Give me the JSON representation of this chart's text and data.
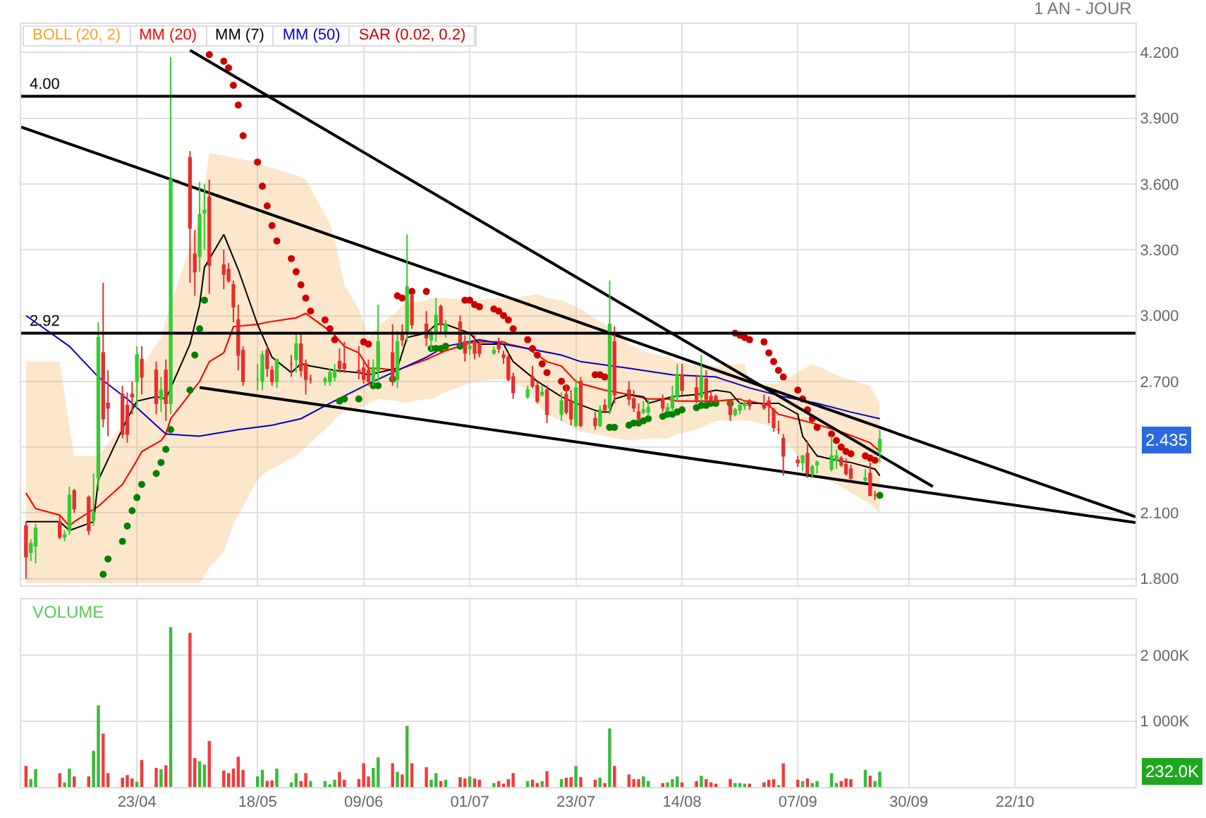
{
  "chart_data": [
    {
      "type": "candlestick",
      "x": [
        "--03-31",
        "--04-01",
        "--04-02",
        "--04-07",
        "--04-08",
        "--04-09",
        "--04-10",
        "--04-13",
        "--04-14",
        "--04-15",
        "--04-16",
        "--04-17",
        "--04-20",
        "--04-21",
        "--04-22",
        "--04-23",
        "--04-24",
        "--04-27",
        "--04-28",
        "--04-29",
        "--04-30",
        "--05-04",
        "--05-05",
        "--05-06",
        "--05-07",
        "--05-08",
        "--05-11",
        "--05-12",
        "--05-13",
        "--05-14",
        "--05-15",
        "--05-18",
        "--05-19",
        "--05-20",
        "--05-21",
        "--05-22",
        "--05-25",
        "--05-26",
        "--05-27",
        "--05-28",
        "--05-29",
        "--06-01",
        "--06-02",
        "--06-03",
        "--06-04",
        "--06-05",
        "--06-08",
        "--06-09",
        "--06-10",
        "--06-11",
        "--06-12",
        "--06-15",
        "--06-16",
        "--06-17",
        "--06-18",
        "--06-19",
        "--06-22",
        "--06-23",
        "--06-24",
        "--06-25",
        "--06-26",
        "--06-29",
        "--06-30",
        "--07-01",
        "--07-02",
        "--07-03",
        "--07-06",
        "--07-07",
        "--07-08",
        "--07-09",
        "--07-10",
        "--07-13",
        "--07-14",
        "--07-15",
        "--07-16",
        "--07-17",
        "--07-20",
        "--07-21",
        "--07-22",
        "--07-23",
        "--07-24",
        "--07-27",
        "--07-28",
        "--07-29",
        "--07-30",
        "--07-31",
        "--08-03",
        "--08-04",
        "--08-05",
        "--08-06",
        "--08-07",
        "--08-10",
        "--08-11",
        "--08-12",
        "--08-13",
        "--08-14",
        "--08-17",
        "--08-18",
        "--08-19",
        "--08-20",
        "--08-21",
        "--08-24",
        "--08-25",
        "--08-26",
        "--08-27",
        "--08-28",
        "--08-31",
        "--09-01",
        "--09-02",
        "--09-03",
        "--09-04",
        "--09-07",
        "--09-08",
        "--09-09",
        "--09-10",
        "--09-11",
        "--09-14",
        "--09-15",
        "--09-16",
        "--09-17",
        "--09-18",
        "--09-21",
        "--09-22",
        "--09-23",
        "--09-24"
      ],
      "ohlc": [
        [
          2.04,
          2.06,
          1.8,
          1.9
        ],
        [
          1.92,
          1.98,
          1.88,
          1.96
        ],
        [
          1.95,
          2.05,
          1.87,
          2.03
        ],
        [
          2.06,
          2.09,
          1.98,
          1.99
        ],
        [
          1.99,
          2.02,
          1.97,
          2.0
        ],
        [
          2.02,
          2.22,
          2.0,
          2.18
        ],
        [
          2.2,
          2.21,
          2.1,
          2.12
        ],
        [
          2.17,
          2.18,
          2.0,
          2.02
        ],
        [
          2.07,
          2.28,
          2.04,
          2.1
        ],
        [
          2.26,
          2.97,
          2.2,
          2.9
        ],
        [
          2.83,
          3.15,
          2.49,
          2.53
        ],
        [
          2.6,
          2.75,
          2.45,
          2.58
        ],
        [
          2.64,
          2.68,
          2.44,
          2.46
        ],
        [
          2.59,
          2.65,
          2.42,
          2.46
        ],
        [
          2.64,
          2.7,
          2.55,
          2.63
        ],
        [
          2.7,
          2.86,
          2.58,
          2.82
        ],
        [
          2.8,
          2.86,
          2.64,
          2.72
        ],
        [
          2.75,
          2.79,
          2.55,
          2.6
        ],
        [
          2.62,
          2.72,
          2.56,
          2.66
        ],
        [
          2.75,
          2.8,
          2.52,
          2.6
        ],
        [
          2.6,
          4.18,
          2.55,
          3.62
        ],
        [
          3.72,
          3.75,
          3.15,
          3.4
        ],
        [
          3.28,
          3.39,
          3.09,
          3.2
        ],
        [
          3.27,
          3.61,
          3.2,
          3.46
        ],
        [
          3.47,
          3.6,
          3.3,
          3.48
        ],
        [
          3.54,
          3.62,
          3.1,
          3.23
        ],
        [
          3.23,
          3.3,
          3.12,
          3.19
        ],
        [
          3.21,
          3.24,
          3.15,
          3.16
        ],
        [
          3.14,
          3.16,
          2.97,
          3.04
        ],
        [
          2.98,
          3.05,
          2.75,
          2.82
        ],
        [
          2.84,
          2.86,
          2.68,
          2.7
        ],
        [
          2.71,
          2.78,
          2.66,
          2.71
        ],
        [
          2.7,
          2.84,
          2.66,
          2.82
        ],
        [
          2.84,
          2.86,
          2.72,
          2.76
        ],
        [
          2.75,
          2.77,
          2.68,
          2.7
        ],
        [
          2.7,
          2.8,
          2.67,
          2.8
        ],
        [
          2.78,
          2.82,
          2.72,
          2.78
        ],
        [
          2.8,
          2.92,
          2.74,
          2.87
        ],
        [
          2.87,
          2.92,
          2.72,
          2.75
        ],
        [
          2.78,
          2.8,
          2.64,
          2.71
        ],
        [
          2.71,
          2.73,
          2.69,
          2.71
        ],
        [
          2.7,
          2.72,
          2.68,
          2.71
        ],
        [
          2.7,
          2.76,
          2.68,
          2.74
        ],
        [
          2.72,
          2.78,
          2.7,
          2.75
        ],
        [
          2.79,
          2.85,
          2.74,
          2.76
        ],
        [
          2.78,
          2.88,
          2.74,
          2.76
        ],
        [
          2.75,
          2.86,
          2.71,
          2.74
        ],
        [
          2.76,
          2.8,
          2.69,
          2.71
        ],
        [
          2.75,
          2.8,
          2.68,
          2.7
        ],
        [
          2.7,
          2.8,
          2.68,
          2.76
        ],
        [
          2.75,
          3.05,
          2.7,
          2.88
        ],
        [
          2.83,
          2.96,
          2.68,
          2.7
        ],
        [
          2.71,
          2.93,
          2.67,
          2.88
        ],
        [
          2.92,
          2.96,
          2.86,
          2.89
        ],
        [
          2.92,
          3.37,
          2.88,
          3.13
        ],
        [
          3.09,
          3.1,
          2.94,
          2.96
        ],
        [
          2.96,
          3.02,
          2.86,
          2.9
        ],
        [
          2.89,
          2.94,
          2.84,
          2.92
        ],
        [
          2.92,
          3.08,
          2.88,
          3.0
        ],
        [
          3.04,
          3.05,
          2.92,
          2.96
        ],
        [
          2.92,
          2.98,
          2.9,
          2.96
        ],
        [
          2.97,
          3.0,
          2.86,
          2.88
        ],
        [
          2.88,
          2.91,
          2.79,
          2.83
        ],
        [
          2.85,
          2.92,
          2.82,
          2.86
        ],
        [
          2.88,
          2.91,
          2.8,
          2.83
        ],
        [
          2.87,
          2.88,
          2.81,
          2.83
        ],
        [
          2.83,
          2.86,
          2.82,
          2.84
        ],
        [
          2.87,
          2.9,
          2.83,
          2.85
        ],
        [
          2.82,
          2.84,
          2.78,
          2.81
        ],
        [
          2.81,
          2.83,
          2.7,
          2.71
        ],
        [
          2.72,
          2.74,
          2.62,
          2.65
        ],
        [
          2.63,
          2.68,
          2.62,
          2.66
        ],
        [
          2.72,
          2.77,
          2.67,
          2.68
        ],
        [
          2.68,
          2.7,
          2.6,
          2.61
        ],
        [
          2.64,
          2.68,
          2.63,
          2.65
        ],
        [
          2.66,
          2.68,
          2.51,
          2.55
        ],
        [
          2.55,
          2.65,
          2.52,
          2.61
        ],
        [
          2.64,
          2.68,
          2.55,
          2.56
        ],
        [
          2.61,
          2.66,
          2.5,
          2.53
        ],
        [
          2.5,
          2.71,
          2.49,
          2.67
        ],
        [
          2.7,
          2.72,
          2.49,
          2.5
        ],
        [
          2.53,
          2.56,
          2.48,
          2.5
        ],
        [
          2.5,
          2.59,
          2.49,
          2.57
        ],
        [
          2.59,
          2.62,
          2.56,
          2.57
        ],
        [
          2.58,
          3.16,
          2.55,
          2.96
        ],
        [
          2.88,
          2.95,
          2.6,
          2.64
        ],
        [
          2.66,
          2.7,
          2.59,
          2.62
        ],
        [
          2.62,
          2.66,
          2.56,
          2.58
        ],
        [
          2.56,
          2.6,
          2.52,
          2.53
        ],
        [
          2.56,
          2.61,
          2.55,
          2.57
        ],
        [
          2.56,
          2.62,
          2.54,
          2.58
        ],
        [
          2.62,
          2.64,
          2.56,
          2.58
        ],
        [
          2.57,
          2.6,
          2.56,
          2.58
        ],
        [
          2.58,
          2.68,
          2.56,
          2.63
        ],
        [
          2.63,
          2.78,
          2.61,
          2.73
        ],
        [
          2.73,
          2.78,
          2.64,
          2.66
        ],
        [
          2.67,
          2.73,
          2.6,
          2.61
        ],
        [
          2.63,
          2.82,
          2.61,
          2.72
        ],
        [
          2.71,
          2.75,
          2.6,
          2.62
        ],
        [
          2.63,
          2.66,
          2.6,
          2.61
        ],
        [
          2.63,
          2.64,
          2.6,
          2.61
        ],
        [
          2.61,
          2.62,
          2.52,
          2.55
        ],
        [
          2.55,
          2.58,
          2.54,
          2.57
        ],
        [
          2.57,
          2.61,
          2.55,
          2.59
        ],
        [
          2.59,
          2.61,
          2.57,
          2.6
        ],
        [
          2.61,
          2.62,
          2.57,
          2.59
        ],
        [
          2.6,
          2.64,
          2.57,
          2.58
        ],
        [
          2.61,
          2.63,
          2.51,
          2.59
        ],
        [
          2.57,
          2.58,
          2.47,
          2.49
        ],
        [
          2.48,
          2.52,
          2.46,
          2.48
        ],
        [
          2.44,
          2.46,
          2.27,
          2.36
        ],
        [
          2.34,
          2.36,
          2.31,
          2.33
        ],
        [
          2.33,
          2.36,
          2.29,
          2.36
        ],
        [
          2.37,
          2.43,
          2.26,
          2.28
        ],
        [
          2.28,
          2.32,
          2.26,
          2.31
        ],
        [
          2.32,
          2.34,
          2.28,
          2.33
        ],
        [
          2.3,
          2.45,
          2.29,
          2.36
        ],
        [
          2.34,
          2.39,
          2.3,
          2.36
        ],
        [
          2.35,
          2.36,
          2.31,
          2.32
        ],
        [
          2.32,
          2.35,
          2.27,
          2.28
        ],
        [
          2.3,
          2.32,
          2.25,
          2.26
        ],
        [
          2.25,
          2.3,
          2.24,
          2.26
        ],
        [
          2.28,
          2.33,
          2.18,
          2.18
        ],
        [
          2.18,
          2.2,
          2.16,
          2.18
        ],
        [
          2.38,
          2.48,
          2.33,
          2.435
        ]
      ],
      "series": [
        {
          "name": "BOLL (20, 2)",
          "type": "line",
          "color": "#f7a035",
          "x": [
            "--03-31",
            "--04-02",
            "--04-07",
            "--04-09",
            "--04-10",
            "--04-15",
            "--04-20",
            "--04-23",
            "--04-24",
            "--04-28",
            "--04-29",
            "--04-30",
            "--05-06",
            "--05-08",
            "--05-11",
            "--05-13",
            "--05-18",
            "--05-20",
            "--05-26",
            "--05-28",
            "--06-02",
            "--06-03",
            "--06-05",
            "--06-08",
            "--06-10",
            "--06-12",
            "--06-16",
            "--06-17",
            "--06-22",
            "--06-23",
            "--06-26",
            "--07-02",
            "--07-08",
            "--07-09",
            "--07-13",
            "--07-15",
            "--07-17",
            "--07-20",
            "--07-23",
            "--07-24",
            "--07-29",
            "--08-03",
            "--08-07",
            "--08-11",
            "--08-13",
            "--08-17",
            "--08-19",
            "--08-21",
            "--08-26",
            "--08-27",
            "--08-28",
            "--09-01",
            "--09-03",
            "--09-10",
            "--09-16",
            "--09-22",
            "--09-24"
          ],
          "values": [
            2.19,
            2.12,
            2.09,
            2.04,
            2.06,
            2.13,
            2.23,
            2.34,
            2.38,
            2.43,
            2.46,
            2.53,
            2.7,
            2.79,
            2.83,
            2.95,
            2.96,
            2.97,
            2.99,
            3.01,
            2.93,
            2.91,
            2.86,
            2.83,
            2.76,
            2.76,
            null,
            2.76,
            2.8,
            2.81,
            2.84,
            2.88,
            2.88,
            2.87,
            2.85,
            2.82,
            2.79,
            2.77,
            2.7,
            2.69,
            2.66,
            2.64,
            2.62,
            2.62,
            2.61,
            2.61,
            2.61,
            2.61,
            2.62,
            2.61,
            2.61,
            2.59,
            2.55,
            2.51,
            2.47,
            2.42,
            2.38
          ],
          "upper": [
            2.79,
            2.79,
            2.79,
            2.5,
            2.36,
            2.36,
            2.5,
            2.7,
            2.77,
            2.9,
            2.98,
            3.05,
            3.45,
            3.74,
            3.73,
            3.72,
            3.7,
            3.68,
            3.64,
            3.62,
            3.42,
            3.35,
            3.14,
            3.03,
            2.9,
            2.95,
            3.02,
            3.05,
            3.07,
            3.08,
            3.08,
            3.07,
            3.08,
            3.08,
            3.09,
            3.1,
            3.08,
            3.07,
            3.04,
            3.03,
            2.96,
            2.87,
            2.83,
            2.81,
            2.79,
            2.77,
            2.77,
            2.77,
            2.78,
            2.78,
            2.69,
            2.69,
            2.69,
            2.78,
            2.72,
            2.68,
            2.6
          ],
          "lower": [
            1.78,
            1.78,
            1.78,
            1.78,
            1.78,
            1.78,
            1.78,
            1.78,
            1.78,
            1.78,
            1.78,
            1.78,
            1.78,
            1.85,
            1.92,
            2.05,
            2.25,
            2.29,
            2.36,
            2.4,
            2.5,
            2.53,
            2.56,
            2.58,
            2.6,
            2.62,
            2.61,
            2.6,
            2.62,
            2.62,
            2.65,
            2.7,
            2.71,
            2.71,
            2.66,
            2.6,
            2.55,
            2.52,
            2.48,
            2.47,
            2.45,
            2.43,
            2.44,
            2.44,
            2.46,
            2.48,
            2.5,
            2.52,
            2.52,
            2.52,
            2.52,
            2.5,
            2.47,
            2.28,
            2.22,
            2.14,
            2.1
          ]
        },
        {
          "name": "MM (20)",
          "type": "line",
          "color": "#ff0000",
          "x": [
            "--03-31",
            "--04-02",
            "--04-07",
            "--04-09",
            "--04-10",
            "--04-15",
            "--04-20",
            "--04-23",
            "--04-24",
            "--04-28",
            "--04-29",
            "--04-30",
            "--05-06",
            "--05-08",
            "--05-11",
            "--05-13",
            "--05-18",
            "--05-20",
            "--05-26",
            "--05-28",
            "--06-02",
            "--06-03",
            "--06-05",
            "--06-08",
            "--06-10",
            "--06-12",
            "--06-16",
            "--06-17",
            "--06-22",
            "--06-23",
            "--06-26",
            "--07-02",
            "--07-08",
            "--07-09",
            "--07-13",
            "--07-15",
            "--07-17",
            "--07-20",
            "--07-23",
            "--07-24",
            "--07-29",
            "--08-03",
            "--08-07",
            "--08-11",
            "--08-13",
            "--08-17",
            "--08-19",
            "--08-21",
            "--08-26",
            "--08-27",
            "--08-28",
            "--09-01",
            "--09-03",
            "--09-10",
            "--09-16",
            "--09-22",
            "--09-24"
          ],
          "values": [
            2.19,
            2.12,
            2.09,
            2.04,
            2.06,
            2.13,
            2.23,
            2.34,
            2.38,
            2.43,
            2.46,
            2.53,
            2.7,
            2.79,
            2.83,
            2.95,
            2.96,
            2.97,
            2.99,
            3.01,
            2.93,
            2.91,
            2.86,
            2.83,
            2.76,
            2.76,
            2.75,
            2.76,
            2.8,
            2.81,
            2.84,
            2.88,
            2.88,
            2.87,
            2.85,
            2.82,
            2.79,
            2.77,
            2.7,
            2.69,
            2.66,
            2.64,
            2.62,
            2.62,
            2.61,
            2.61,
            2.61,
            2.61,
            2.62,
            2.61,
            2.61,
            2.59,
            2.55,
            2.51,
            2.47,
            2.42,
            2.38
          ]
        },
        {
          "name": "MM (7)",
          "type": "line",
          "color": "#000000",
          "x": [
            "--03-31",
            "--04-07",
            "--04-09",
            "--04-14",
            "--04-15",
            "--04-21",
            "--04-23",
            "--04-27",
            "--04-29",
            "--05-04",
            "--05-06",
            "--05-07",
            "--05-11",
            "--05-14",
            "--05-18",
            "--05-21",
            "--05-25",
            "--05-27",
            "--05-29",
            "--06-03",
            "--06-08",
            "--06-10",
            "--06-16",
            "--06-18",
            "--06-22",
            "--06-24",
            "--06-26",
            "--07-01",
            "--07-03",
            "--07-08",
            "--07-10",
            "--07-15",
            "--07-20",
            "--07-23",
            "--07-28",
            "--07-30",
            "--07-31",
            "--08-03",
            "--08-06",
            "--08-07",
            "--08-12",
            "--08-17",
            "--08-21",
            "--08-24",
            "--08-26",
            "--08-31",
            "--09-03",
            "--09-07",
            "--09-08",
            "--09-11",
            "--09-15",
            "--09-18",
            "--09-23",
            "--09-24"
          ],
          "values": [
            2.06,
            2.06,
            2.02,
            2.06,
            2.25,
            2.53,
            2.61,
            2.63,
            2.62,
            2.87,
            3.05,
            3.22,
            3.37,
            3.21,
            2.96,
            2.81,
            2.74,
            2.78,
            2.77,
            2.75,
            2.74,
            2.73,
            2.76,
            2.9,
            2.92,
            2.96,
            2.96,
            2.92,
            2.87,
            2.87,
            2.79,
            2.7,
            2.63,
            2.6,
            2.56,
            2.56,
            2.62,
            2.64,
            2.63,
            2.6,
            2.63,
            2.64,
            2.66,
            2.65,
            2.6,
            2.6,
            2.6,
            2.55,
            2.45,
            2.36,
            2.34,
            2.33,
            2.3,
            2.27
          ]
        },
        {
          "name": "MM (50)",
          "type": "line",
          "color": "#0000cc",
          "x": [
            "--03-31",
            "--04-09",
            "--04-15",
            "--04-21",
            "--04-29",
            "--05-06",
            "--05-14",
            "--05-21",
            "--05-27",
            "--06-02",
            "--06-11",
            "--06-22",
            "--06-26",
            "--07-03",
            "--07-13",
            "--07-20",
            "--07-24",
            "--08-03",
            "--08-12",
            "--08-21",
            "--08-28",
            "--09-04",
            "--09-11",
            "--09-18",
            "--09-24"
          ],
          "values": [
            3.0,
            2.86,
            2.72,
            2.62,
            2.46,
            2.45,
            2.48,
            2.5,
            2.53,
            2.6,
            2.7,
            2.81,
            2.86,
            2.89,
            2.85,
            2.82,
            2.79,
            2.76,
            2.73,
            2.72,
            2.67,
            2.63,
            2.6,
            2.56,
            2.53
          ]
        },
        {
          "name": "SAR (0.02, 0.2)",
          "type": "scatter",
          "color": "#cc0000",
          "values": [
            null,
            null,
            null,
            null,
            null,
            null,
            null,
            null,
            null,
            null,
            1.82,
            1.89,
            1.97,
            2.04,
            2.11,
            2.17,
            2.23,
            2.28,
            2.33,
            2.39,
            2.48,
            2.66,
            2.82,
            2.94,
            3.07,
            4.19,
            4.16,
            4.13,
            4.05,
            3.96,
            3.82,
            3.7,
            3.59,
            3.5,
            3.41,
            3.34,
            3.26,
            3.2,
            3.14,
            3.08,
            3.02,
            2.98,
            2.94,
            2.89,
            2.61,
            2.62,
            2.62,
            2.88,
            2.87,
            2.68,
            2.68,
            2.71,
            3.09,
            3.08,
            null,
            3.11,
            3.11,
            2.85,
            2.85,
            2.85,
            2.86,
            2.86,
            3.07,
            3.07,
            3.05,
            3.04,
            3.03,
            3.02,
            3.0,
            2.98,
            2.94,
            2.89,
            2.85,
            2.82,
            2.78,
            2.74,
            2.7,
            2.67,
            null,
            null,
            null,
            2.73,
            2.73,
            2.72,
            2.49,
            2.49,
            2.5,
            2.51,
            2.51,
            2.52,
            2.53,
            2.54,
            2.55,
            2.55,
            2.56,
            2.57,
            2.58,
            2.59,
            2.59,
            2.6,
            2.6,
            2.6,
            2.92,
            2.91,
            2.9,
            2.89,
            2.88,
            2.83,
            2.79,
            2.75,
            2.72,
            2.66,
            2.62,
            2.57,
            2.53,
            2.49,
            2.46,
            2.43,
            2.4,
            2.38,
            2.37,
            2.36,
            2.35,
            2.34,
            2.18
          ],
          "colors": [
            null,
            null,
            null,
            null,
            null,
            null,
            null,
            null,
            null,
            null,
            "#008000",
            "#008000",
            "#008000",
            "#008000",
            "#008000",
            "#008000",
            "#008000",
            "#008000",
            "#008000",
            "#008000",
            "#008000",
            "#008000",
            "#008000",
            "#008000",
            "#008000",
            "#cc0000",
            "#cc0000",
            "#cc0000",
            "#cc0000",
            "#cc0000",
            "#cc0000",
            "#cc0000",
            "#cc0000",
            "#cc0000",
            "#cc0000",
            "#cc0000",
            "#cc0000",
            "#cc0000",
            "#cc0000",
            "#cc0000",
            "#cc0000",
            "#cc0000",
            "#cc0000",
            "#cc0000",
            "#008000",
            "#008000",
            "#008000",
            "#cc0000",
            "#cc0000",
            "#008000",
            "#008000",
            "#008000",
            "#cc0000",
            "#cc0000",
            null,
            "#cc0000",
            "#cc0000",
            "#008000",
            "#008000",
            "#008000",
            "#008000",
            "#008000",
            "#cc0000",
            "#cc0000",
            "#cc0000",
            "#cc0000",
            "#cc0000",
            "#cc0000",
            "#cc0000",
            "#cc0000",
            "#cc0000",
            "#cc0000",
            "#cc0000",
            "#cc0000",
            "#cc0000",
            "#cc0000",
            "#cc0000",
            "#cc0000",
            null,
            null,
            null,
            "#cc0000",
            "#cc0000",
            "#cc0000",
            "#008000",
            "#008000",
            "#008000",
            "#008000",
            "#008000",
            "#008000",
            "#008000",
            "#008000",
            "#008000",
            "#008000",
            "#008000",
            "#008000",
            "#008000",
            "#008000",
            "#008000",
            "#008000",
            "#008000",
            "#008000",
            "#cc0000",
            "#cc0000",
            "#cc0000",
            "#cc0000",
            "#cc0000",
            "#cc0000",
            "#cc0000",
            "#cc0000",
            "#cc0000",
            "#cc0000",
            "#cc0000",
            "#cc0000",
            "#cc0000",
            "#cc0000",
            "#cc0000",
            "#cc0000",
            "#cc0000",
            "#cc0000",
            "#cc0000",
            "#cc0000",
            "#cc0000",
            "#cc0000",
            "#008000"
          ]
        },
        {
          "type": "line",
          "color": "#000000",
          "x": [
            "--05-04",
            "--10-05"
          ],
          "values": [
            4.21,
            2.22
          ]
        },
        {
          "type": "line",
          "color": "#000000",
          "x": [
            "--03-30",
            "--11-16"
          ],
          "values": [
            3.86,
            2.082
          ]
        },
        {
          "type": "line",
          "color": "#000000",
          "x": [
            "--05-06",
            "--11-16"
          ],
          "values": [
            2.672,
            2.056
          ]
        }
      ],
      "xlim": [
        "--03-30",
        "--11-16"
      ],
      "xticks": [
        {
          "value": "--04-23",
          "label": "23/04"
        },
        {
          "value": "--05-18",
          "label": "18/05"
        },
        {
          "value": "--06-09",
          "label": "09/06"
        },
        {
          "value": "--07-01",
          "label": "01/07"
        },
        {
          "value": "--07-23",
          "label": "23/07"
        },
        {
          "value": "--08-14",
          "label": "14/08"
        },
        {
          "value": "--09-07",
          "label": "07/09"
        },
        {
          "value": "--09-30",
          "label": "30/09"
        },
        {
          "value": "--10-22",
          "label": "22/10"
        }
      ],
      "ylim": [
        1.77,
        4.33
      ],
      "yticks": [
        {
          "value": 1.8,
          "label": "1.800"
        },
        {
          "value": 2.1,
          "label": "2.100"
        },
        {
          "value": 2.4,
          "label": null
        },
        {
          "value": 2.7,
          "label": "2.700"
        },
        {
          "value": 3.0,
          "label": "3.000"
        },
        {
          "value": 3.3,
          "label": "3.300"
        },
        {
          "value": 3.6,
          "label": "3.600"
        },
        {
          "value": 3.9,
          "label": "3.900"
        },
        {
          "value": 4.2,
          "label": "4.200"
        }
      ],
      "ref_lines": [
        {
          "axis": "y",
          "value": 4.0,
          "label": "4.00",
          "color": "#000000"
        },
        {
          "axis": "y",
          "value": 2.92,
          "label": "2.92",
          "color": "#000000"
        }
      ],
      "annotations": [
        "1 AN - JOUR",
        "2.435"
      ],
      "legend": "top left",
      "grid": true,
      "tick_labels": "y"
    },
    {
      "type": "bar",
      "title": "VOLUME",
      "x": [
        "--03-31",
        "--04-01",
        "--04-02",
        "--04-07",
        "--04-08",
        "--04-09",
        "--04-10",
        "--04-13",
        "--04-14",
        "--04-15",
        "--04-16",
        "--04-17",
        "--04-20",
        "--04-21",
        "--04-22",
        "--04-23",
        "--04-24",
        "--04-27",
        "--04-28",
        "--04-29",
        "--04-30",
        "--05-04",
        "--05-05",
        "--05-06",
        "--05-07",
        "--05-08",
        "--05-11",
        "--05-12",
        "--05-13",
        "--05-14",
        "--05-15",
        "--05-18",
        "--05-19",
        "--05-20",
        "--05-21",
        "--05-22",
        "--05-25",
        "--05-26",
        "--05-27",
        "--05-28",
        "--05-29",
        "--06-01",
        "--06-02",
        "--06-03",
        "--06-04",
        "--06-05",
        "--06-08",
        "--06-09",
        "--06-10",
        "--06-11",
        "--06-12",
        "--06-15",
        "--06-16",
        "--06-17",
        "--06-18",
        "--06-19",
        "--06-22",
        "--06-23",
        "--06-24",
        "--06-25",
        "--06-26",
        "--06-29",
        "--06-30",
        "--07-01",
        "--07-02",
        "--07-03",
        "--07-06",
        "--07-07",
        "--07-08",
        "--07-09",
        "--07-10",
        "--07-13",
        "--07-14",
        "--07-15",
        "--07-16",
        "--07-17",
        "--07-20",
        "--07-21",
        "--07-22",
        "--07-23",
        "--07-24",
        "--07-27",
        "--07-28",
        "--07-29",
        "--07-30",
        "--07-31",
        "--08-03",
        "--08-04",
        "--08-05",
        "--08-06",
        "--08-07",
        "--08-10",
        "--08-11",
        "--08-12",
        "--08-13",
        "--08-14",
        "--08-17",
        "--08-18",
        "--08-19",
        "--08-20",
        "--08-21",
        "--08-24",
        "--08-25",
        "--08-26",
        "--08-27",
        "--08-28",
        "--08-31",
        "--09-01",
        "--09-02",
        "--09-03",
        "--09-04",
        "--09-07",
        "--09-08",
        "--09-09",
        "--09-10",
        "--09-11",
        "--09-14",
        "--09-15",
        "--09-16",
        "--09-17",
        "--09-18",
        "--09-21",
        "--09-22",
        "--09-23",
        "--09-24"
      ],
      "values": [
        320,
        120,
        270,
        210,
        70,
        280,
        160,
        160,
        550,
        1240,
        810,
        210,
        140,
        180,
        130,
        80,
        410,
        290,
        270,
        330,
        2430,
        2340,
        440,
        390,
        340,
        700,
        250,
        210,
        280,
        460,
        260,
        160,
        260,
        90,
        100,
        280,
        70,
        210,
        90,
        210,
        90,
        90,
        40,
        110,
        230,
        110,
        120,
        360,
        160,
        290,
        450,
        360,
        230,
        190,
        930,
        360,
        300,
        110,
        210,
        90,
        110,
        150,
        130,
        160,
        130,
        110,
        60,
        90,
        50,
        120,
        210,
        90,
        110,
        60,
        90,
        240,
        120,
        140,
        150,
        320,
        150,
        110,
        140,
        60,
        890,
        320,
        190,
        120,
        120,
        160,
        90,
        60,
        70,
        120,
        160,
        70,
        90,
        170,
        120,
        70,
        50,
        120,
        60,
        60,
        50,
        50,
        70,
        110,
        120,
        30,
        360,
        110,
        90,
        130,
        60,
        90,
        210,
        60,
        90,
        130,
        120,
        260,
        170,
        90,
        232
      ],
      "colors": [
        "#f03c3c",
        "#3cb83c",
        "#3cb83c",
        "#f03c3c",
        "#3cb83c",
        "#3cb83c",
        "#f03c3c",
        "#f03c3c",
        "#3cb83c",
        "#3cb83c",
        "#f03c3c",
        "#f03c3c",
        "#f03c3c",
        "#f03c3c",
        "#f03c3c",
        "#3cb83c",
        "#f03c3c",
        "#f03c3c",
        "#3cb83c",
        "#f03c3c",
        "#3cb83c",
        "#f03c3c",
        "#f03c3c",
        "#3cb83c",
        "#3cb83c",
        "#f03c3c",
        "#f03c3c",
        "#f03c3c",
        "#f03c3c",
        "#f03c3c",
        "#f03c3c",
        "#3cb83c",
        "#3cb83c",
        "#f03c3c",
        "#f03c3c",
        "#3cb83c",
        "#3cb83c",
        "#3cb83c",
        "#f03c3c",
        "#f03c3c",
        "#3cb83c",
        "#3cb83c",
        "#3cb83c",
        "#3cb83c",
        "#f03c3c",
        "#f03c3c",
        "#f03c3c",
        "#f03c3c",
        "#f03c3c",
        "#3cb83c",
        "#3cb83c",
        "#f03c3c",
        "#3cb83c",
        "#f03c3c",
        "#3cb83c",
        "#f03c3c",
        "#f03c3c",
        "#3cb83c",
        "#3cb83c",
        "#f03c3c",
        "#3cb83c",
        "#f03c3c",
        "#f03c3c",
        "#3cb83c",
        "#f03c3c",
        "#f03c3c",
        "#3cb83c",
        "#f03c3c",
        "#f03c3c",
        "#f03c3c",
        "#f03c3c",
        "#3cb83c",
        "#f03c3c",
        "#f03c3c",
        "#3cb83c",
        "#f03c3c",
        "#3cb83c",
        "#f03c3c",
        "#f03c3c",
        "#3cb83c",
        "#f03c3c",
        "#f03c3c",
        "#3cb83c",
        "#f03c3c",
        "#3cb83c",
        "#f03c3c",
        "#f03c3c",
        "#f03c3c",
        "#f03c3c",
        "#3cb83c",
        "#3cb83c",
        "#f03c3c",
        "#3cb83c",
        "#3cb83c",
        "#3cb83c",
        "#f03c3c",
        "#f03c3c",
        "#3cb83c",
        "#f03c3c",
        "#f03c3c",
        "#f03c3c",
        "#f03c3c",
        "#3cb83c",
        "#3cb83c",
        "#3cb83c",
        "#f03c3c",
        "#f03c3c",
        "#f03c3c",
        "#f03c3c",
        "#3cb83c",
        "#f03c3c",
        "#f03c3c",
        "#3cb83c",
        "#f03c3c",
        "#3cb83c",
        "#3cb83c",
        "#3cb83c",
        "#3cb83c",
        "#f03c3c",
        "#f03c3c",
        "#f03c3c",
        "#3cb83c",
        "#f03c3c",
        "#3cb83c",
        "#3cb83c"
      ],
      "xlim": [
        "--03-30",
        "--11-16"
      ],
      "xticks": [
        {
          "value": "--04-23",
          "label": "23/04"
        },
        {
          "value": "--05-18",
          "label": "18/05"
        },
        {
          "value": "--06-09",
          "label": "09/06"
        },
        {
          "value": "--07-01",
          "label": "01/07"
        },
        {
          "value": "--07-23",
          "label": "23/07"
        },
        {
          "value": "--08-14",
          "label": "14/08"
        },
        {
          "value": "--09-07",
          "label": "07/09"
        },
        {
          "value": "--09-30",
          "label": "30/09"
        },
        {
          "value": "--10-22",
          "label": "22/10"
        }
      ],
      "ylim": [
        0,
        2850
      ],
      "yticks": [
        {
          "value": 1000,
          "label": "1 000K"
        },
        {
          "value": 2000,
          "label": "2 000K"
        }
      ],
      "annotations": [
        "232.0K"
      ],
      "grid": true
    }
  ]
}
